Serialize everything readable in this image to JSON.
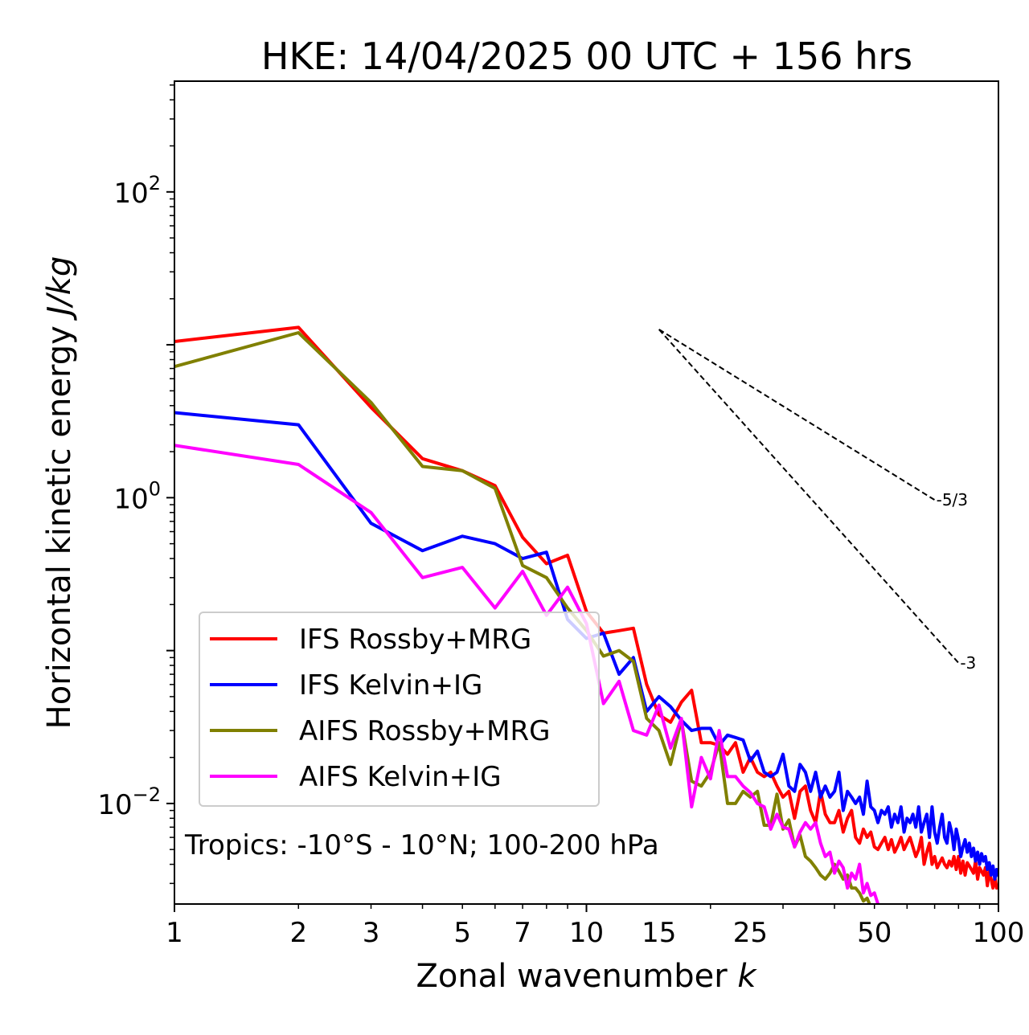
{
  "chart_data": {
    "type": "line",
    "title": "HKE: 14/04/2025 00 UTC + 156 hrs",
    "xlabel": "Zonal wavenumber k",
    "xlabel_text": "Zonal wavenumber ",
    "xlabel_var": "k",
    "ylabel_text": "Horizontal kinetic energy ",
    "ylabel_unit": "J/kg",
    "x_scale": "log",
    "y_scale": "log",
    "xlim": [
      1,
      100
    ],
    "ylim": [
      0.0022,
      530
    ],
    "xticks": [
      1,
      2,
      3,
      5,
      7,
      10,
      15,
      25,
      50,
      100
    ],
    "xtick_labels": [
      "1",
      "2",
      "3",
      "5",
      "7",
      "10",
      "15",
      "25",
      "50",
      "100"
    ],
    "yticks": [
      {
        "value": 0.01,
        "base": "10",
        "exp": "−2"
      },
      {
        "value": 1,
        "base": "10",
        "exp": "0"
      },
      {
        "value": 100,
        "base": "10",
        "exp": "2"
      }
    ],
    "grid": false,
    "legend_position": "lower-left",
    "annotation": "Tropics: -10°S - 10°N; 100-200 hPa",
    "reference_lines": [
      {
        "label": "-5/3",
        "slope": -1.6667,
        "x_start": 15,
        "y_start": 12.6,
        "x_end": 70
      },
      {
        "label": "-3",
        "slope": -3,
        "x_start": 15,
        "y_start": 12.6,
        "x_end": 80
      }
    ],
    "series": [
      {
        "name": "IFS Rossby+MRG",
        "color": "#ff0000",
        "x": [
          1,
          2,
          3,
          4,
          5,
          6,
          7,
          8,
          9,
          10,
          11,
          12,
          13,
          14,
          15,
          16,
          17,
          18,
          19,
          20,
          21,
          22,
          23,
          24,
          25,
          26,
          27,
          28,
          29,
          30,
          31,
          32,
          33,
          34,
          35,
          36,
          37,
          38,
          39,
          40,
          41,
          42,
          43,
          44,
          45,
          46,
          47,
          48,
          49,
          50,
          51,
          52,
          53,
          54,
          55,
          56,
          57,
          58,
          59,
          60,
          61,
          62,
          63,
          64,
          65,
          66,
          67,
          68,
          69,
          70,
          71,
          72,
          73,
          74,
          75,
          76,
          77,
          78,
          79,
          80,
          81,
          82,
          83,
          84,
          85,
          86,
          87,
          88,
          89,
          90,
          91,
          92,
          93,
          94,
          95,
          96,
          97,
          98,
          99,
          100
        ],
        "y": [
          10.5,
          13.0,
          3.9,
          1.8,
          1.5,
          1.2,
          0.55,
          0.37,
          0.42,
          0.18,
          0.13,
          0.135,
          0.14,
          0.06,
          0.038,
          0.034,
          0.046,
          0.055,
          0.025,
          0.025,
          0.024,
          0.021,
          0.025,
          0.016,
          0.02,
          0.016,
          0.015,
          0.016,
          0.013,
          0.011,
          0.012,
          0.008,
          0.012,
          0.013,
          0.009,
          0.0075,
          0.012,
          0.0085,
          0.0075,
          0.0075,
          0.009,
          0.0065,
          0.008,
          0.009,
          0.006,
          0.0055,
          0.0068,
          0.006,
          0.0065,
          0.0052,
          0.005,
          0.0055,
          0.006,
          0.005,
          0.0058,
          0.0048,
          0.0053,
          0.006,
          0.005,
          0.0055,
          0.006,
          0.0052,
          0.0045,
          0.005,
          0.006,
          0.004,
          0.0048,
          0.0055,
          0.004,
          0.0045,
          0.0038,
          0.0041,
          0.0044,
          0.004,
          0.0038,
          0.0042,
          0.0039,
          0.0045,
          0.0037,
          0.0045,
          0.0035,
          0.0042,
          0.0034,
          0.0041,
          0.0039,
          0.0037,
          0.0035,
          0.0042,
          0.0032,
          0.0038,
          0.0036,
          0.0034,
          0.0038,
          0.0029,
          0.0036,
          0.0032,
          0.0028,
          0.0033,
          0.0028,
          0.0029
        ]
      },
      {
        "name": "IFS Kelvin+IG",
        "color": "#0000ff",
        "x": [
          1,
          2,
          3,
          4,
          5,
          6,
          7,
          8,
          9,
          10,
          11,
          12,
          13,
          14,
          15,
          16,
          17,
          18,
          19,
          20,
          21,
          22,
          23,
          24,
          25,
          26,
          27,
          28,
          29,
          30,
          31,
          32,
          33,
          34,
          35,
          36,
          37,
          38,
          39,
          40,
          41,
          42,
          43,
          44,
          45,
          46,
          47,
          48,
          49,
          50,
          51,
          52,
          53,
          54,
          55,
          56,
          57,
          58,
          59,
          60,
          61,
          62,
          63,
          64,
          65,
          66,
          67,
          68,
          69,
          70,
          71,
          72,
          73,
          74,
          75,
          76,
          77,
          78,
          79,
          80,
          81,
          82,
          83,
          84,
          85,
          86,
          87,
          88,
          89,
          90,
          91,
          92,
          93,
          94,
          95,
          96,
          97,
          98,
          99,
          100
        ],
        "y": [
          3.6,
          3.0,
          0.68,
          0.45,
          0.56,
          0.5,
          0.4,
          0.44,
          0.16,
          0.12,
          0.13,
          0.07,
          0.09,
          0.04,
          0.05,
          0.043,
          0.035,
          0.03,
          0.031,
          0.031,
          0.024,
          0.028,
          0.027,
          0.026,
          0.019,
          0.022,
          0.016,
          0.015,
          0.016,
          0.021,
          0.013,
          0.012,
          0.018,
          0.016,
          0.012,
          0.016,
          0.011,
          0.013,
          0.011,
          0.012,
          0.016,
          0.009,
          0.012,
          0.011,
          0.01,
          0.011,
          0.0085,
          0.014,
          0.0095,
          0.009,
          0.0075,
          0.009,
          0.0085,
          0.0095,
          0.007,
          0.0085,
          0.0075,
          0.0095,
          0.0065,
          0.008,
          0.0075,
          0.0085,
          0.007,
          0.0095,
          0.0065,
          0.0075,
          0.0085,
          0.006,
          0.0095,
          0.0065,
          0.0055,
          0.007,
          0.0085,
          0.006,
          0.0055,
          0.0075,
          0.0065,
          0.005,
          0.0068,
          0.0058,
          0.0045,
          0.0052,
          0.0058,
          0.0048,
          0.0055,
          0.0045,
          0.0051,
          0.0042,
          0.0048,
          0.004,
          0.0047,
          0.0042,
          0.0045,
          0.0037,
          0.0041,
          0.0034,
          0.0039,
          0.0032,
          0.0037,
          0.0034
        ]
      },
      {
        "name": "AIFS Rossby+MRG",
        "color": "#808000",
        "x": [
          1,
          2,
          3,
          4,
          5,
          6,
          7,
          8,
          9,
          10,
          11,
          12,
          13,
          14,
          15,
          16,
          17,
          18,
          19,
          20,
          21,
          22,
          23,
          24,
          25,
          26,
          27,
          28,
          29,
          30,
          31,
          32,
          33,
          34,
          35,
          36,
          37,
          38,
          39,
          40,
          41,
          42,
          43,
          44,
          45,
          46,
          47,
          48,
          49
        ],
        "y": [
          7.2,
          12.0,
          4.2,
          1.6,
          1.5,
          1.15,
          0.36,
          0.3,
          0.19,
          0.135,
          0.092,
          0.1,
          0.085,
          0.036,
          0.03,
          0.018,
          0.035,
          0.014,
          0.013,
          0.016,
          0.025,
          0.01,
          0.01,
          0.012,
          0.011,
          0.012,
          0.0072,
          0.0072,
          0.0115,
          0.0068,
          0.0078,
          0.0052,
          0.0062,
          0.0045,
          0.0042,
          0.0038,
          0.0034,
          0.0032,
          0.0035,
          0.004,
          0.0036,
          0.0032,
          0.0034,
          0.0028,
          0.0028,
          0.0026,
          0.0023,
          0.0024,
          0.0021
        ]
      },
      {
        "name": "AIFS Kelvin+IG",
        "color": "#ff00ff",
        "x": [
          1,
          2,
          3,
          4,
          5,
          6,
          7,
          8,
          9,
          10,
          11,
          12,
          13,
          14,
          15,
          16,
          17,
          18,
          19,
          20,
          21,
          22,
          23,
          24,
          25,
          26,
          27,
          28,
          29,
          30,
          31,
          32,
          33,
          34,
          35,
          36,
          37,
          38,
          39,
          40,
          41,
          42,
          43,
          44,
          45,
          46,
          47,
          48,
          49,
          50,
          51,
          52,
          53,
          54,
          55,
          56,
          57,
          58
        ],
        "y": [
          2.2,
          1.65,
          0.8,
          0.3,
          0.35,
          0.19,
          0.33,
          0.17,
          0.26,
          0.15,
          0.045,
          0.063,
          0.03,
          0.028,
          0.044,
          0.023,
          0.036,
          0.0095,
          0.02,
          0.0145,
          0.03,
          0.015,
          0.015,
          0.013,
          0.0118,
          0.01,
          0.0095,
          0.0068,
          0.0085,
          0.007,
          0.0068,
          0.0052,
          0.0065,
          0.0075,
          0.0068,
          0.0075,
          0.0055,
          0.0045,
          0.0048,
          0.0035,
          0.0042,
          0.0038,
          0.0028,
          0.0035,
          0.0032,
          0.004,
          0.0026,
          0.003,
          0.0025,
          0.0026,
          0.0022,
          0.0019,
          0.002,
          0.0018,
          0.0019,
          0.0017,
          0.0021,
          0.0018
        ]
      }
    ]
  }
}
